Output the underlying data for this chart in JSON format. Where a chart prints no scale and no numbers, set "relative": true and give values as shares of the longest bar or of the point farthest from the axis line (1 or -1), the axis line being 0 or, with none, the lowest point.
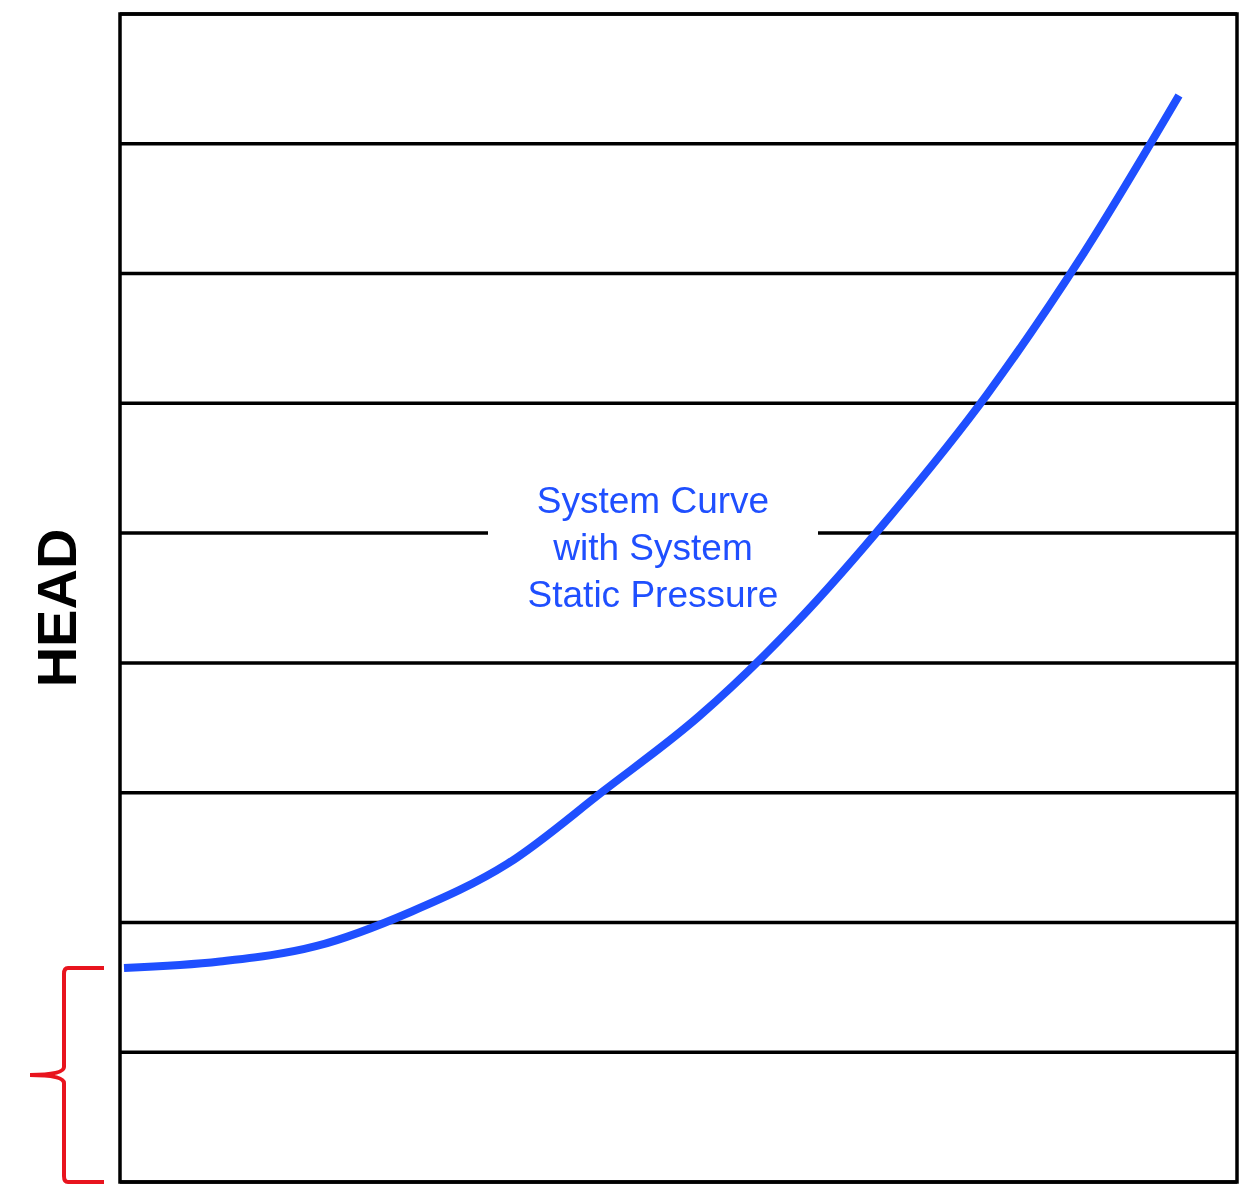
{
  "chart_data": {
    "type": "line",
    "ylabel": "HEAD",
    "relative": true,
    "categories": [
      null,
      null,
      null,
      null,
      null,
      null,
      null,
      null,
      null,
      null,
      null,
      null
    ],
    "series": [
      {
        "color": "#1f4fff",
        "values": [
          0.197,
          0.203,
          0.217,
          0.249,
          0.293,
          0.36,
          0.429,
          0.514,
          0.614,
          0.725,
          0.854,
          1
        ]
      }
    ],
    "grid": "y",
    "marker": "none",
    "line_style": "solid",
    "annotations": [
      "System Curve with System Static Pressure"
    ]
  }
}
